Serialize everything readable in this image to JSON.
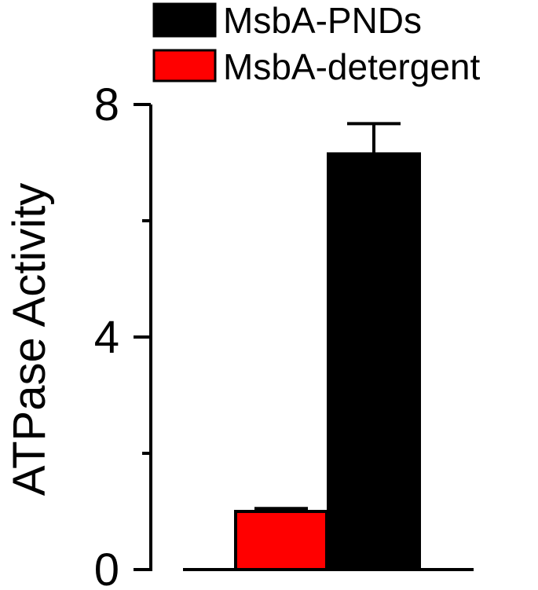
{
  "chart_data": {
    "type": "bar",
    "ylabel": "ATPase Activity",
    "ylim": [
      0,
      8
    ],
    "yticks_major": [
      0,
      4,
      8
    ],
    "yticks_minor": [
      2,
      6
    ],
    "ytick_labels": [
      "0",
      "4",
      "8"
    ],
    "grid": false,
    "legend_position": "top-right",
    "series": [
      {
        "name": "MsbA-detergent",
        "color": "#ff0000",
        "value": 1.0,
        "error": 0.05
      },
      {
        "name": "MsbA-PNDs",
        "color": "#000000",
        "value": 7.15,
        "error": 0.52
      }
    ]
  }
}
